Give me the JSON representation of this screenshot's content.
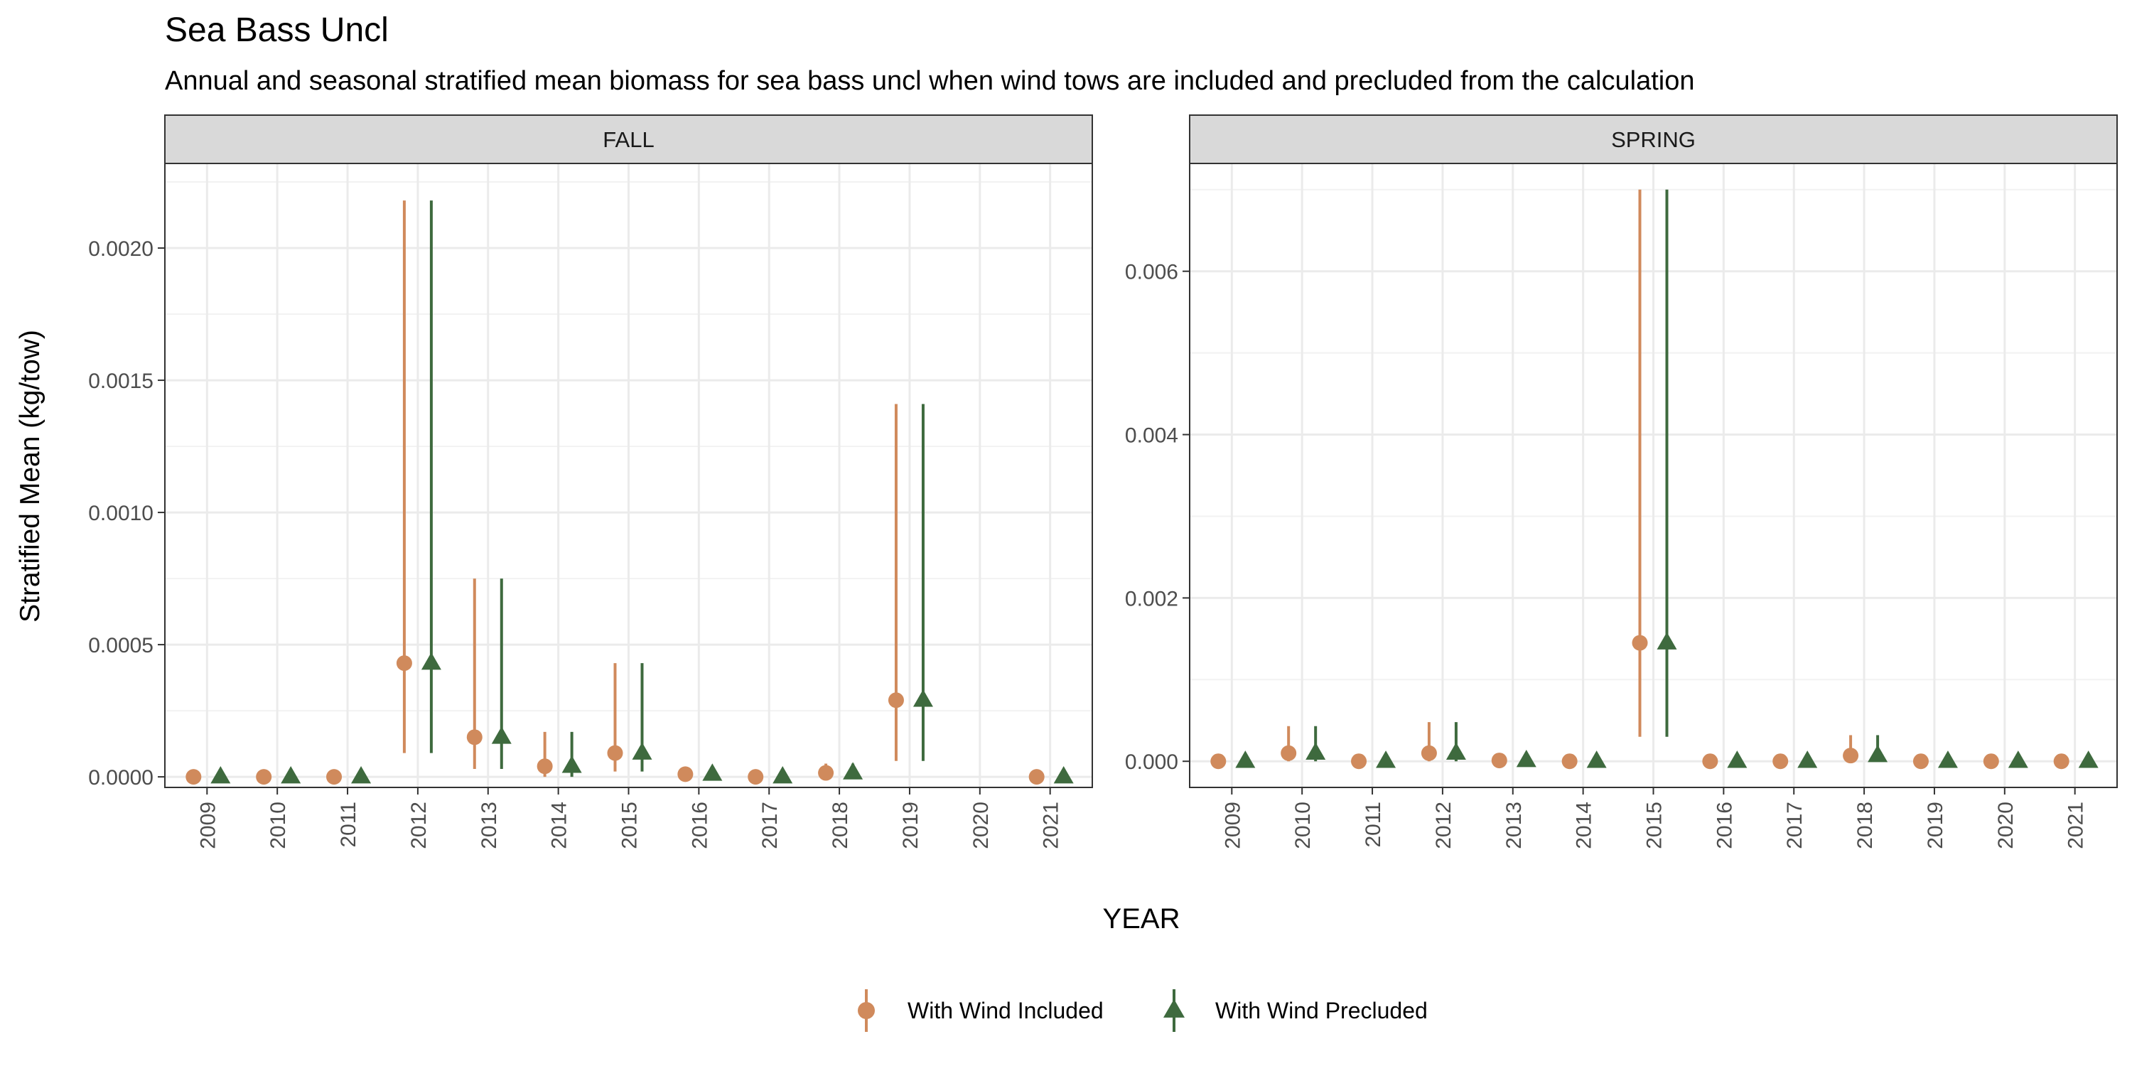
{
  "title": "Sea Bass Uncl",
  "subtitle": "Annual and seasonal stratified mean biomass for sea bass uncl when wind tows are included and precluded from the calculation",
  "ylabel": "Stratified Mean (kg/tow)",
  "xlabel": "YEAR",
  "colors": {
    "included": "#D08A5C",
    "precluded": "#3E6A3E"
  },
  "legend": {
    "position": "bottom",
    "items": [
      {
        "label": "With Wind Included",
        "shape": "circle"
      },
      {
        "label": "With Wind Precluded",
        "shape": "triangle"
      }
    ]
  },
  "chart_data": [
    {
      "type": "scatter",
      "panel": "FALL",
      "years": [
        "2009",
        "2010",
        "2011",
        "2012",
        "2013",
        "2014",
        "2015",
        "2016",
        "2017",
        "2018",
        "2019",
        "2020",
        "2021"
      ],
      "ylim": [
        -4e-05,
        0.00232
      ],
      "yticks": [
        0,
        0.0005,
        0.001,
        0.0015,
        0.002
      ],
      "ytick_labels": [
        "0.0000",
        "0.0005",
        "0.0010",
        "0.0015",
        "0.0020"
      ],
      "grid": true,
      "series": [
        {
          "name": "With Wind Included",
          "values": [
            0,
            0,
            0,
            0.00043,
            0.00015,
            4e-05,
            9e-05,
            1e-05,
            0,
            1.5e-05,
            0.00029,
            null,
            0
          ],
          "lower": [
            0,
            0,
            0,
            9e-05,
            3e-05,
            0,
            2e-05,
            0,
            0,
            0,
            6e-05,
            null,
            0
          ],
          "upper": [
            0,
            0,
            0,
            0.00218,
            0.00075,
            0.00017,
            0.00043,
            2e-05,
            0,
            5e-05,
            0.00141,
            null,
            0
          ]
        },
        {
          "name": "With Wind Precluded",
          "values": [
            0,
            0,
            0,
            0.00043,
            0.00015,
            4e-05,
            9e-05,
            1e-05,
            0,
            1.5e-05,
            0.00029,
            null,
            0
          ],
          "lower": [
            0,
            0,
            0,
            9e-05,
            3e-05,
            0,
            2e-05,
            0,
            0,
            0,
            6e-05,
            null,
            0
          ],
          "upper": [
            0,
            0,
            0,
            0.00218,
            0.00075,
            0.00017,
            0.00043,
            2e-05,
            0,
            5e-05,
            0.00141,
            null,
            0
          ]
        }
      ]
    },
    {
      "type": "scatter",
      "panel": "SPRING",
      "years": [
        "2009",
        "2010",
        "2011",
        "2012",
        "2013",
        "2014",
        "2015",
        "2016",
        "2017",
        "2018",
        "2019",
        "2020",
        "2021"
      ],
      "ylim": [
        -0.00032,
        0.00732
      ],
      "yticks": [
        0,
        0.002,
        0.004,
        0.006
      ],
      "ytick_labels": [
        "0.000",
        "0.002",
        "0.004",
        "0.006"
      ],
      "grid": true,
      "series": [
        {
          "name": "With Wind Included",
          "values": [
            0,
            0.0001,
            0,
            0.0001,
            1e-05,
            0,
            0.00145,
            0,
            0,
            7e-05,
            0,
            0,
            0
          ],
          "lower": [
            0,
            0,
            0,
            0,
            0,
            0,
            0.0003,
            0,
            0,
            0,
            0,
            0,
            0
          ],
          "upper": [
            0,
            0.00043,
            0,
            0.00048,
            3e-05,
            0,
            0.007,
            0,
            0,
            0.00032,
            0,
            0,
            0
          ]
        },
        {
          "name": "With Wind Precluded",
          "values": [
            0,
            0.0001,
            0,
            0.0001,
            1e-05,
            0,
            0.00145,
            0,
            0,
            7e-05,
            0,
            0,
            0
          ],
          "lower": [
            0,
            0,
            0,
            0,
            0,
            0,
            0.0003,
            0,
            0,
            0,
            0,
            0,
            0
          ],
          "upper": [
            0,
            0.00043,
            0,
            0.00048,
            3e-05,
            0,
            0.007,
            0,
            0,
            0.00032,
            0,
            0,
            0
          ]
        }
      ]
    }
  ]
}
